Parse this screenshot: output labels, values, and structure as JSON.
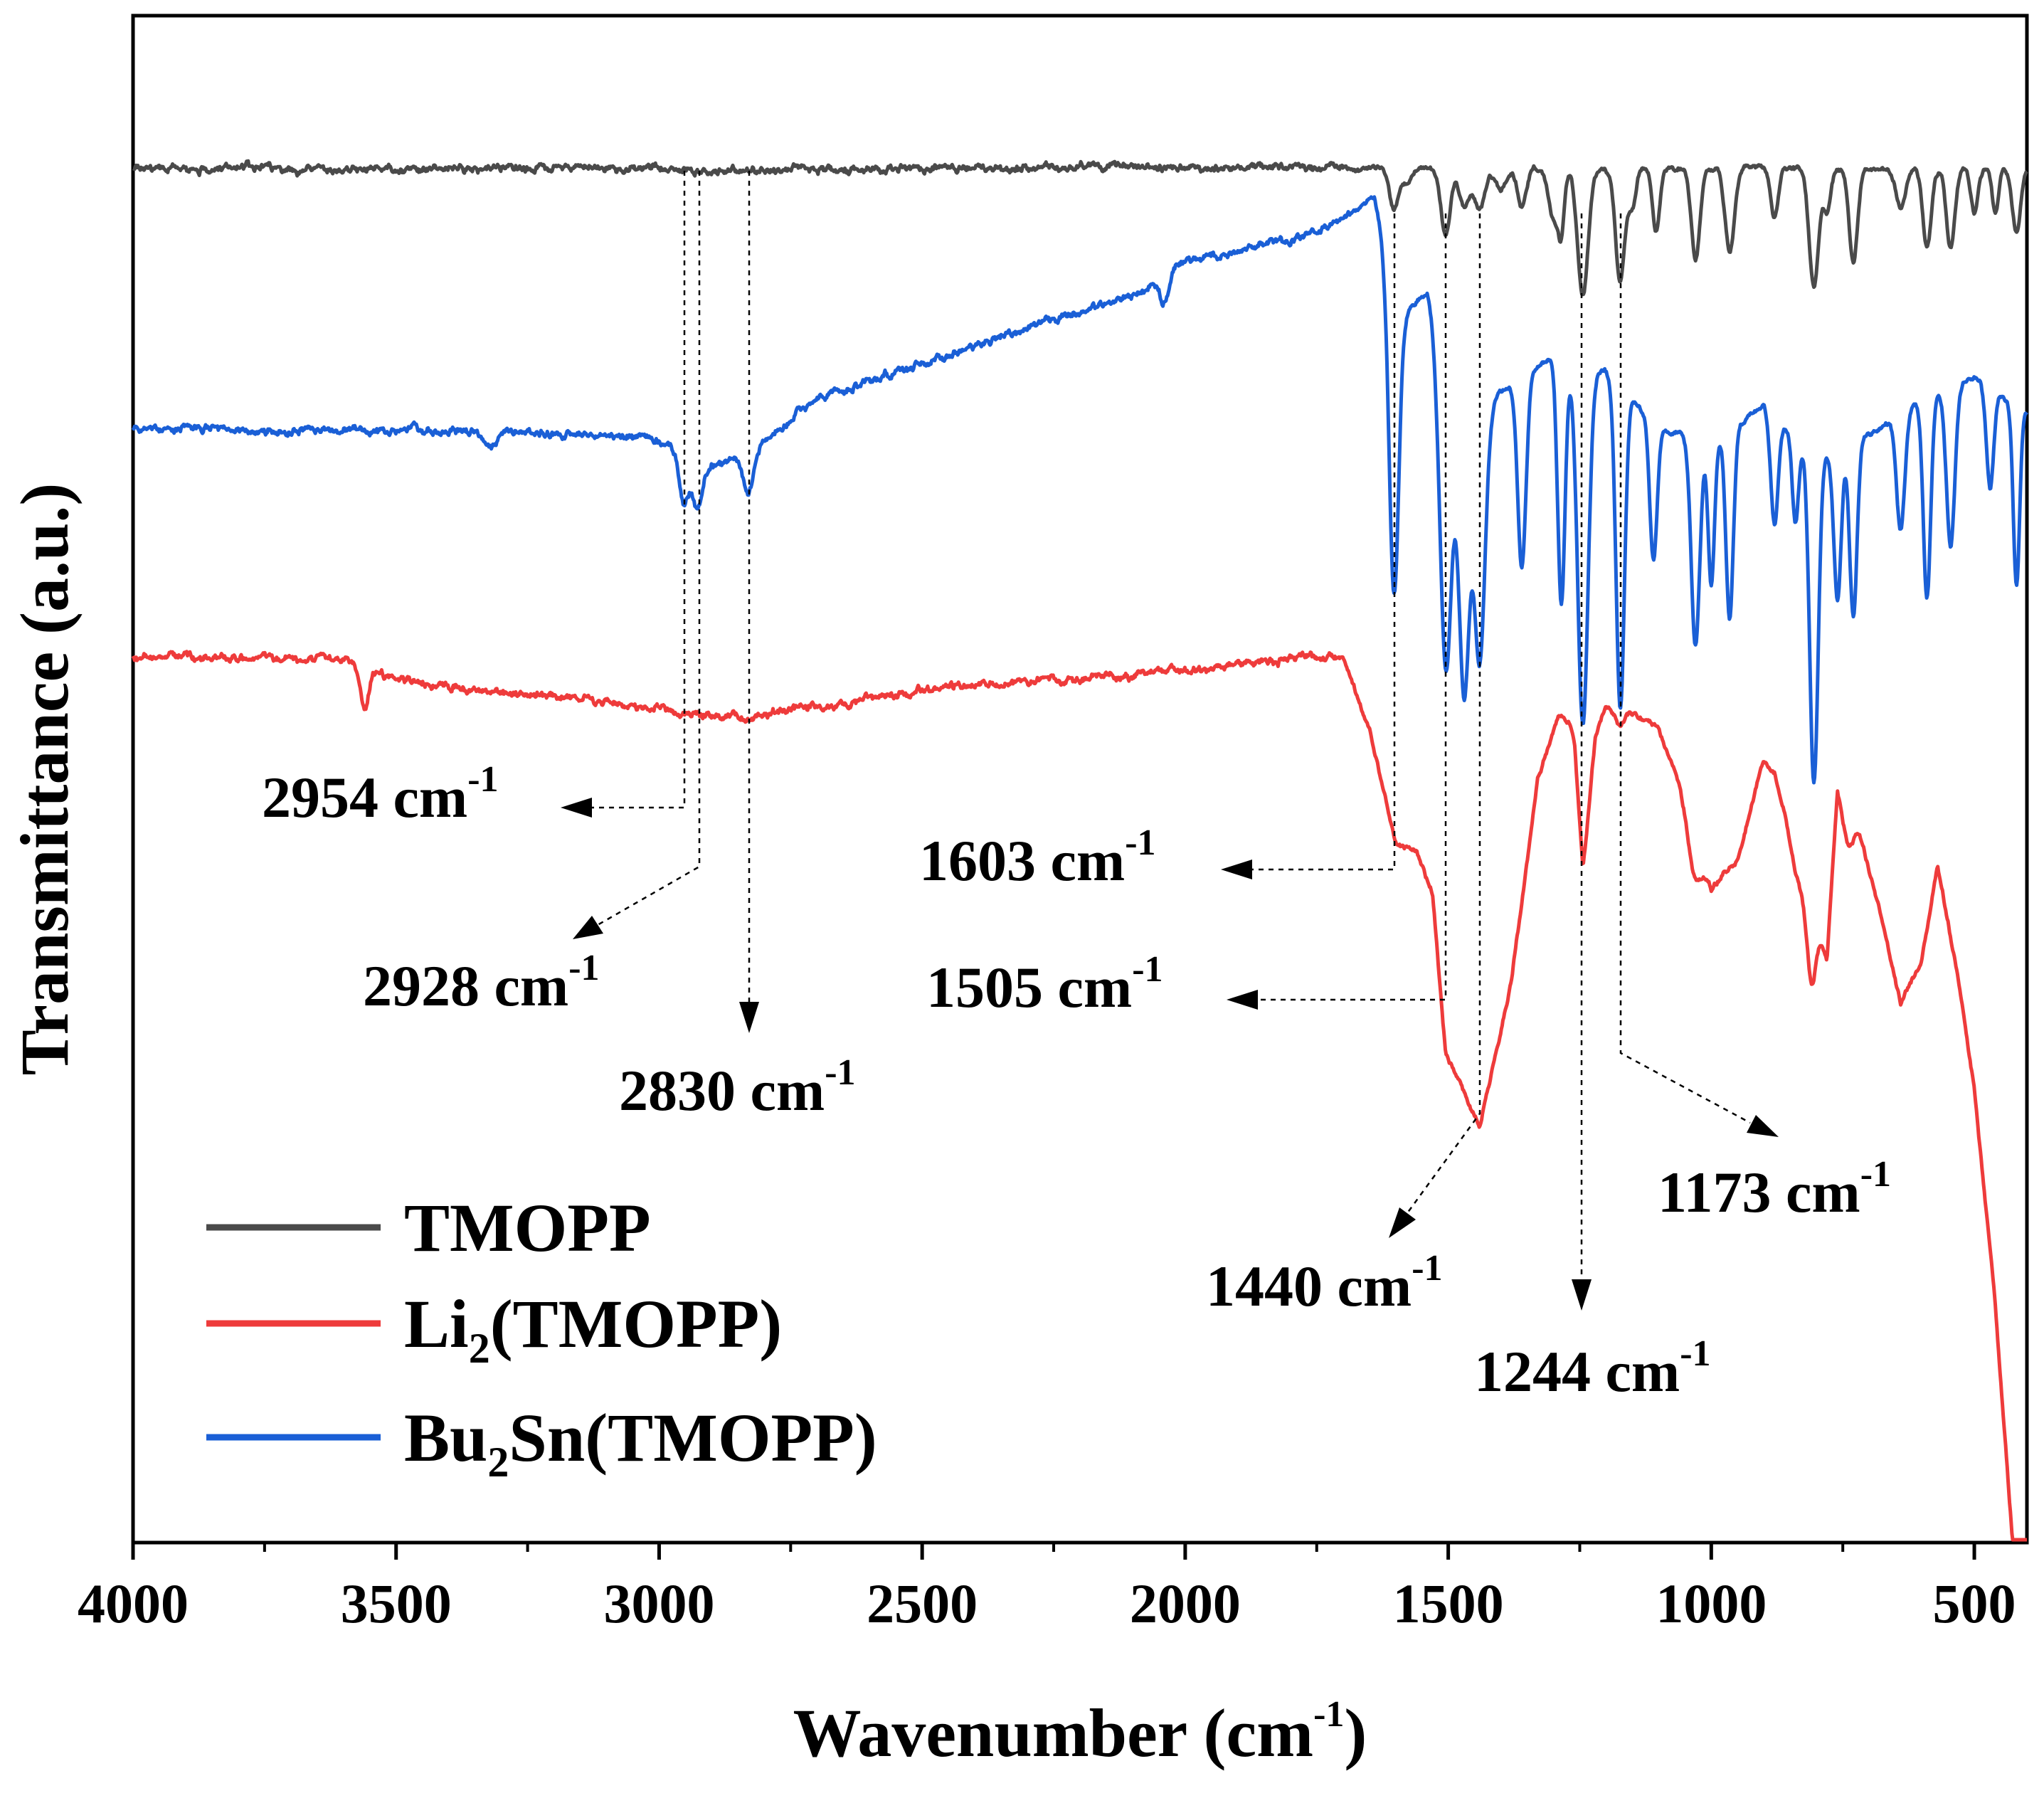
{
  "chart_data": {
    "type": "line",
    "title": "",
    "xlabel": "Wavenumber (cm",
    "xlabel_sup": "-1",
    "xlabel_close": ")",
    "ylabel": "Transmittance (a.u.)",
    "xlim": [
      4000,
      400
    ],
    "x_reversed": true,
    "y_ticks_shown": false,
    "grid": false,
    "x_ticks": [
      4000,
      3500,
      3000,
      2500,
      2000,
      1500,
      1000,
      500
    ],
    "x_tick_labels": [
      "4000",
      "3500",
      "3000",
      "2500",
      "2000",
      "1500",
      "1000",
      "500"
    ],
    "legend": {
      "placement": "bottom-left",
      "entries": [
        {
          "key": "tmopp",
          "parts": [
            "TMOPP"
          ],
          "color": "#4a4a4a"
        },
        {
          "key": "li2",
          "parts": [
            "Li",
            "2",
            "(TMOPP)"
          ],
          "color": "#ee3b3b"
        },
        {
          "key": "bu2sn",
          "parts": [
            "Bu",
            "2",
            "Sn(TMOPP)"
          ],
          "color": "#1a5fd6"
        }
      ]
    },
    "series": [
      {
        "name": "TMOPP",
        "color": "#4a4a4a",
        "offset": 0.9,
        "amplitude": 0.105,
        "baseline": [
          [
            4000,
            0.0
          ],
          [
            3700,
            0.0
          ],
          [
            3300,
            0.012
          ],
          [
            3100,
            0.01
          ],
          [
            2954,
            0.02
          ],
          [
            2928,
            0.025
          ],
          [
            2830,
            0.025
          ],
          [
            2700,
            0.015
          ],
          [
            2400,
            0.005
          ],
          [
            2200,
            -0.01
          ],
          [
            2000,
            -0.01
          ],
          [
            1700,
            -0.01
          ],
          [
            1620,
            -0.02
          ],
          [
            1600,
            0.0
          ]
        ],
        "bands": [
          [
            2954,
            0.012,
            12
          ],
          [
            2928,
            0.01,
            10
          ],
          [
            2830,
            0.02,
            12
          ],
          [
            1603,
            0.55,
            9
          ],
          [
            1580,
            0.2,
            8
          ],
          [
            1505,
            0.9,
            9
          ],
          [
            1470,
            0.5,
            10
          ],
          [
            1440,
            0.55,
            10
          ],
          [
            1400,
            0.3,
            10
          ],
          [
            1360,
            0.55,
            8
          ],
          [
            1300,
            0.7,
            9
          ],
          [
            1285,
            0.8,
            6
          ],
          [
            1244,
            1.75,
            10
          ],
          [
            1173,
            1.55,
            9
          ],
          [
            1150,
            0.5,
            7
          ],
          [
            1105,
            0.9,
            7
          ],
          [
            1030,
            1.25,
            8
          ],
          [
            965,
            1.15,
            9
          ],
          [
            880,
            0.7,
            7
          ],
          [
            805,
            1.65,
            9
          ],
          [
            780,
            0.6,
            7
          ],
          [
            730,
            1.3,
            8
          ],
          [
            640,
            0.55,
            9
          ],
          [
            590,
            1.1,
            8
          ],
          [
            545,
            1.1,
            8
          ],
          [
            500,
            0.6,
            7
          ],
          [
            460,
            0.6,
            6
          ],
          [
            420,
            0.9,
            8
          ]
        ]
      },
      {
        "name": "Li2(TMOPP)",
        "color": "#ee3b3b",
        "offset": 0.58,
        "amplitude": 0.105,
        "baseline": [
          [
            4000,
            0.0
          ],
          [
            3600,
            0.0
          ],
          [
            3500,
            0.3
          ],
          [
            3300,
            0.5
          ],
          [
            3100,
            0.62
          ],
          [
            2954,
            0.75
          ],
          [
            2900,
            0.78
          ],
          [
            2830,
            0.82
          ],
          [
            2700,
            0.7
          ],
          [
            2500,
            0.45
          ],
          [
            2300,
            0.35
          ],
          [
            2100,
            0.25
          ],
          [
            1950,
            0.12
          ],
          [
            1800,
            0.05
          ],
          [
            1740,
            -0.02
          ],
          [
            1700,
            0.0
          ],
          [
            1650,
            1.0
          ],
          [
            1600,
            2.6
          ],
          [
            1560,
            2.7
          ],
          [
            1530,
            3.3
          ],
          [
            1505,
            5.5
          ],
          [
            1440,
            6.5
          ],
          [
            1380,
            4.5
          ],
          [
            1330,
            1.7
          ],
          [
            1290,
            0.8
          ],
          [
            1260,
            0.9
          ],
          [
            1244,
            2.3
          ],
          [
            1220,
            1.0
          ],
          [
            1200,
            0.7
          ],
          [
            1150,
            0.8
          ],
          [
            1100,
            1.0
          ],
          [
            1050,
            2.0
          ],
          [
            1000,
            3.2
          ],
          [
            950,
            2.8
          ],
          [
            900,
            1.4
          ],
          [
            880,
            1.3
          ],
          [
            840,
            3.0
          ],
          [
            810,
            3.6
          ],
          [
            780,
            4.2
          ],
          [
            760,
            1.8
          ],
          [
            720,
            2.4
          ],
          [
            680,
            3.5
          ],
          [
            640,
            4.8
          ],
          [
            600,
            4.2
          ],
          [
            570,
            2.9
          ],
          [
            530,
            4.5
          ],
          [
            500,
            6.0
          ],
          [
            460,
            9.0
          ],
          [
            420,
            13.0
          ],
          [
            400,
            15.0
          ]
        ],
        "bands": [
          [
            3560,
            0.6,
            8
          ],
          [
            2954,
            0.05,
            10
          ],
          [
            2830,
            0.06,
            12
          ],
          [
            1244,
            0.6,
            12
          ],
          [
            1173,
            0.2,
            8
          ],
          [
            1033,
            0.6,
            12
          ],
          [
            880,
            0.3,
            10
          ],
          [
            810,
            0.9,
            8
          ],
          [
            740,
            0.5,
            10
          ]
        ]
      },
      {
        "name": "Bu2Sn(TMOPP)",
        "color": "#1a5fd6",
        "offset": 0.73,
        "amplitude": 0.105,
        "baseline": [
          [
            4000,
            0.0
          ],
          [
            3300,
            0.05
          ],
          [
            3000,
            0.15
          ],
          [
            2954,
            0.4
          ],
          [
            2928,
            0.6
          ],
          [
            2830,
            0.4
          ],
          [
            2700,
            -0.4
          ],
          [
            2500,
            -0.9
          ],
          [
            2300,
            -1.4
          ],
          [
            2100,
            -1.8
          ],
          [
            2000,
            -2.3
          ],
          [
            1800,
            -2.6
          ],
          [
            1700,
            -2.9
          ],
          [
            1640,
            -3.2
          ],
          [
            1610,
            -2.0
          ],
          [
            1580,
            -1.6
          ],
          [
            1540,
            -1.9
          ],
          [
            1505,
            -1.0
          ],
          [
            1470,
            0.2
          ],
          [
            1400,
            -0.5
          ],
          [
            1300,
            -1.0
          ],
          [
            1200,
            -0.8
          ],
          [
            1100,
            0.0
          ],
          [
            1000,
            0.2
          ],
          [
            900,
            -0.3
          ],
          [
            800,
            0.4
          ],
          [
            700,
            0.1
          ],
          [
            600,
            -0.4
          ],
          [
            500,
            -0.7
          ],
          [
            400,
            -0.2
          ]
        ],
        "bands": [
          [
            3320,
            0.25,
            12
          ],
          [
            2954,
            0.65,
            8
          ],
          [
            2928,
            0.55,
            10
          ],
          [
            2830,
            0.5,
            10
          ],
          [
            2040,
            0.35,
            8
          ],
          [
            1603,
            4.2,
            9
          ],
          [
            1505,
            4.3,
            11
          ],
          [
            1470,
            3.5,
            10
          ],
          [
            1440,
            3.3,
            10
          ],
          [
            1360,
            2.6,
            8
          ],
          [
            1285,
            3.4,
            7
          ],
          [
            1244,
            5.0,
            10
          ],
          [
            1173,
            4.5,
            8
          ],
          [
            1110,
            1.9,
            7
          ],
          [
            1030,
            2.9,
            8
          ],
          [
            1000,
            2.0,
            6
          ],
          [
            965,
            2.6,
            7
          ],
          [
            880,
            1.5,
            7
          ],
          [
            840,
            1.2,
            6
          ],
          [
            805,
            4.6,
            8
          ],
          [
            760,
            2.1,
            7
          ],
          [
            730,
            2.4,
            7
          ],
          [
            640,
            1.6,
            8
          ],
          [
            590,
            2.8,
            7
          ],
          [
            545,
            2.2,
            8
          ],
          [
            470,
            1.4,
            7
          ],
          [
            420,
            2.5,
            6
          ]
        ]
      }
    ],
    "annotations": [
      {
        "label": "2954 cm",
        "wavenumber": 2954
      },
      {
        "label": "2928 cm",
        "wavenumber": 2928
      },
      {
        "label": "2830 cm",
        "wavenumber": 2830
      },
      {
        "label": "1603 cm",
        "wavenumber": 1603
      },
      {
        "label": "1505 cm",
        "wavenumber": 1505
      },
      {
        "label": "1440 cm",
        "wavenumber": 1440
      },
      {
        "label": "1244 cm",
        "wavenumber": 1244
      },
      {
        "label": "1173 cm",
        "wavenumber": 1173
      }
    ],
    "annotation_unit_sup": "-1"
  }
}
